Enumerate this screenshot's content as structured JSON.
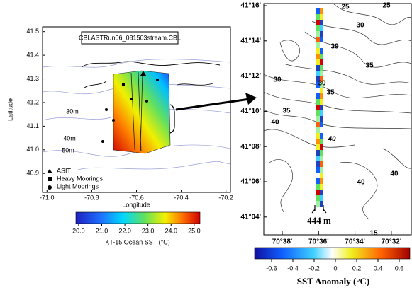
{
  "left_map": {
    "title": "CBLASTRun06_081503stream.CBL",
    "xlabel": "Longitude",
    "ylabel": "Latitude",
    "xlim": [
      -71.02,
      -70.18
    ],
    "xticks": [
      {
        "value": -71,
        "label": "-71.0"
      },
      -70.8,
      -70.6,
      -70.4,
      -70.2
    ],
    "ylim": [
      40.82,
      41.52
    ],
    "yticks": [
      40.9,
      {
        "value": 41,
        "label": "41.0"
      },
      41.1,
      41.2,
      41.3,
      41.4,
      41.5
    ],
    "depth_labels": [
      "30m",
      "40m",
      "50m"
    ],
    "legend": [
      "ASIT",
      "Heavy Moorings",
      "Light Moorings"
    ],
    "colorbar": {
      "label": "KT-15 Ocean SST (°C)",
      "lim": [
        19.88,
        25.25
      ],
      "ticks": [
        {
          "value": 20,
          "label": "20.0"
        },
        {
          "value": 21,
          "label": "21.0"
        },
        {
          "value": 22,
          "label": "22.0"
        },
        {
          "value": 23,
          "label": "23.0"
        },
        {
          "value": 24,
          "label": "24.0"
        },
        {
          "value": 25,
          "label": "25.0"
        }
      ]
    }
  },
  "right_map": {
    "yticks": [
      "41°16'",
      "41°14'",
      "41°12'",
      "41°10'",
      "41°08'",
      "41°06'",
      "41°04'"
    ],
    "xticks": [
      "70°38'",
      "70°36'",
      "70°34'",
      "70°32'"
    ],
    "contour_labels": [
      "25",
      "25",
      "30",
      "39",
      "35",
      "30",
      "30",
      "35",
      "35",
      "40",
      "40",
      "40",
      "40",
      "15"
    ],
    "scale_label": "444 m",
    "colorbar": {
      "label": "SST Anomaly (°C)",
      "lim": [
        -0.76,
        0.7
      ],
      "ticks": [
        -0.6,
        -0.4,
        -0.2,
        0,
        0.2,
        0.4,
        0.6
      ]
    }
  }
}
